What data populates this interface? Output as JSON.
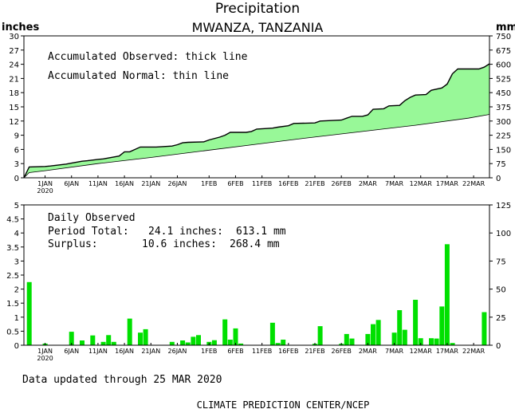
{
  "header": {
    "title": "Precipitation",
    "subtitle": "MWANZA, TANZANIA",
    "left_unit": "inches",
    "right_unit": "mm"
  },
  "colors": {
    "accum_fill": "#98f898",
    "daily_bar": "#00e000",
    "axis": "#000000"
  },
  "chart_data": [
    {
      "type": "area",
      "name": "accumulated",
      "legend_lines": [
        "Accumulated Observed: thick line",
        "Accumulated Normal: thin line"
      ],
      "x_unit": "day index (0 = 1 Jan 2020)",
      "x_ticks": [
        {
          "day": 0,
          "label": "1JAN"
        },
        {
          "day": 5,
          "label": "6JAN"
        },
        {
          "day": 10,
          "label": "11JAN"
        },
        {
          "day": 15,
          "label": "16JAN"
        },
        {
          "day": 20,
          "label": "21JAN"
        },
        {
          "day": 25,
          "label": "26JAN"
        },
        {
          "day": 31,
          "label": "1FEB"
        },
        {
          "day": 36,
          "label": "6FEB"
        },
        {
          "day": 41,
          "label": "11FEB"
        },
        {
          "day": 46,
          "label": "16FEB"
        },
        {
          "day": 51,
          "label": "21FEB"
        },
        {
          "day": 56,
          "label": "26FEB"
        },
        {
          "day": 61,
          "label": "2MAR"
        },
        {
          "day": 66,
          "label": "7MAR"
        },
        {
          "day": 71,
          "label": "12MAR"
        },
        {
          "day": 76,
          "label": "17MAR"
        },
        {
          "day": 81,
          "label": "22MAR"
        }
      ],
      "year_label": "2020",
      "xlim": [
        -4,
        84
      ],
      "ylim": [
        0,
        30
      ],
      "y_ticks": [
        "0",
        "3",
        "6",
        "9",
        "12",
        "15",
        "18",
        "21",
        "24",
        "27",
        "30"
      ],
      "y2_ticks": [
        "0",
        "75",
        "150",
        "225",
        "300",
        "375",
        "450",
        "525",
        "600",
        "675",
        "750"
      ],
      "observed": [
        [
          -4,
          0
        ],
        [
          -3,
          2.3
        ],
        [
          0,
          2.4
        ],
        [
          1,
          2.5
        ],
        [
          4,
          2.9
        ],
        [
          5,
          3.1
        ],
        [
          7,
          3.5
        ],
        [
          8,
          3.6
        ],
        [
          10,
          3.9
        ],
        [
          11,
          4.0
        ],
        [
          14,
          4.6
        ],
        [
          15,
          5.5
        ],
        [
          16,
          5.5
        ],
        [
          17,
          6.0
        ],
        [
          18,
          6.5
        ],
        [
          21,
          6.5
        ],
        [
          24,
          6.7
        ],
        [
          25,
          7.0
        ],
        [
          26,
          7.4
        ],
        [
          27,
          7.5
        ],
        [
          30,
          7.6
        ],
        [
          31,
          8.0
        ],
        [
          33,
          8.6
        ],
        [
          34,
          9.0
        ],
        [
          35,
          9.6
        ],
        [
          38,
          9.6
        ],
        [
          39,
          9.8
        ],
        [
          40,
          10.3
        ],
        [
          43,
          10.5
        ],
        [
          44,
          10.7
        ],
        [
          46,
          11.0
        ],
        [
          47,
          11.5
        ],
        [
          51,
          11.6
        ],
        [
          52,
          12.0
        ],
        [
          56,
          12.2
        ],
        [
          57,
          12.6
        ],
        [
          58,
          13.0
        ],
        [
          60,
          13.0
        ],
        [
          61,
          13.3
        ],
        [
          62,
          14.5
        ],
        [
          64,
          14.6
        ],
        [
          65,
          15.2
        ],
        [
          67,
          15.3
        ],
        [
          68,
          16.3
        ],
        [
          69,
          17.0
        ],
        [
          70,
          17.5
        ],
        [
          72,
          17.6
        ],
        [
          73,
          18.5
        ],
        [
          75,
          19.0
        ],
        [
          76,
          19.8
        ],
        [
          77,
          22.0
        ],
        [
          78,
          23.0
        ],
        [
          82,
          23.0
        ],
        [
          83,
          23.4
        ],
        [
          84,
          24.1
        ]
      ],
      "normal": [
        [
          -4,
          0
        ],
        [
          -3,
          1.1
        ],
        [
          0,
          1.5
        ],
        [
          10,
          3.0
        ],
        [
          20,
          4.3
        ],
        [
          30,
          5.7
        ],
        [
          40,
          7.1
        ],
        [
          50,
          8.5
        ],
        [
          60,
          9.8
        ],
        [
          70,
          11.1
        ],
        [
          80,
          12.6
        ],
        [
          84,
          13.4
        ]
      ]
    },
    {
      "type": "bar",
      "name": "daily",
      "legend_lines": [
        "Daily Observed"
      ],
      "period_total_label": "Period Total:",
      "period_total_inches": "24.1 inches:",
      "period_total_mm": "613.1 mm",
      "surplus_label": "Surplus:",
      "surplus_inches": "10.6 inches:",
      "surplus_mm": "268.4 mm",
      "ylim": [
        0,
        5
      ],
      "y_ticks": [
        "0",
        "0.5",
        "1",
        "1.5",
        "2",
        "2.5",
        "3",
        "3.5",
        "4",
        "4.5",
        "5"
      ],
      "y2_ticks": [
        "0",
        "25",
        "50",
        "75",
        "100",
        "125"
      ],
      "bars": [
        {
          "day": -3,
          "value": 2.25
        },
        {
          "day": 0,
          "value": 0.06
        },
        {
          "day": 5,
          "value": 0.48
        },
        {
          "day": 7,
          "value": 0.17
        },
        {
          "day": 9,
          "value": 0.35
        },
        {
          "day": 11,
          "value": 0.12
        },
        {
          "day": 12,
          "value": 0.36
        },
        {
          "day": 13,
          "value": 0.12
        },
        {
          "day": 16,
          "value": 0.95
        },
        {
          "day": 18,
          "value": 0.45
        },
        {
          "day": 19,
          "value": 0.57
        },
        {
          "day": 24,
          "value": 0.12
        },
        {
          "day": 26,
          "value": 0.17
        },
        {
          "day": 27,
          "value": 0.1
        },
        {
          "day": 28,
          "value": 0.3
        },
        {
          "day": 29,
          "value": 0.36
        },
        {
          "day": 31,
          "value": 0.12
        },
        {
          "day": 32,
          "value": 0.18
        },
        {
          "day": 34,
          "value": 0.92
        },
        {
          "day": 35,
          "value": 0.2
        },
        {
          "day": 36,
          "value": 0.6
        },
        {
          "day": 37,
          "value": 0.06
        },
        {
          "day": 43,
          "value": 0.8
        },
        {
          "day": 44,
          "value": 0.08
        },
        {
          "day": 45,
          "value": 0.2
        },
        {
          "day": 51,
          "value": 0.05
        },
        {
          "day": 52,
          "value": 0.68
        },
        {
          "day": 56,
          "value": 0.05
        },
        {
          "day": 57,
          "value": 0.4
        },
        {
          "day": 58,
          "value": 0.24
        },
        {
          "day": 61,
          "value": 0.4
        },
        {
          "day": 62,
          "value": 0.75
        },
        {
          "day": 63,
          "value": 0.9
        },
        {
          "day": 66,
          "value": 0.45
        },
        {
          "day": 67,
          "value": 1.25
        },
        {
          "day": 68,
          "value": 0.55
        },
        {
          "day": 70,
          "value": 1.62
        },
        {
          "day": 71,
          "value": 0.25
        },
        {
          "day": 73,
          "value": 0.25
        },
        {
          "day": 74,
          "value": 0.24
        },
        {
          "day": 75,
          "value": 1.38
        },
        {
          "day": 76,
          "value": 3.6
        },
        {
          "day": 77,
          "value": 0.08
        },
        {
          "day": 83,
          "value": 1.18
        }
      ]
    }
  ],
  "footer": {
    "updated": "Data updated through 25 MAR 2020",
    "credit": "CLIMATE PREDICTION CENTER/NCEP"
  }
}
